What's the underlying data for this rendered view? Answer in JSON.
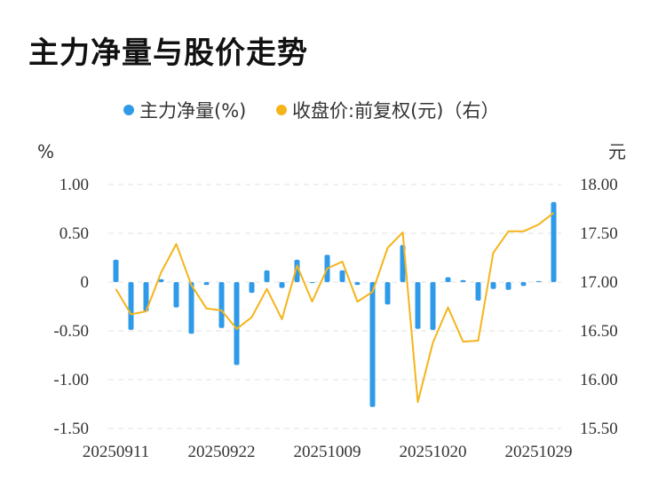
{
  "title": "主力净量与股价走势",
  "chart_data": {
    "type": "bar+line",
    "legend": [
      {
        "label": "主力净量(%)",
        "color": "#2f9be8"
      },
      {
        "label": "收盘价:前复权(元)（右）",
        "color": "#f5b41a"
      }
    ],
    "left_unit": "%",
    "right_unit": "元",
    "left_ticks": [
      "1.00",
      "0.50",
      "0",
      "-0.50",
      "-1.00",
      "-1.50"
    ],
    "right_ticks": [
      "18.00",
      "17.50",
      "17.00",
      "16.50",
      "16.00",
      "15.50"
    ],
    "left_range": [
      -1.5,
      1.0
    ],
    "right_range": [
      15.5,
      18.0
    ],
    "x_labels": [
      "20250911",
      "20250922",
      "20251009",
      "20251020",
      "20251029"
    ],
    "grid": true,
    "series": [
      {
        "name": "主力净量(%)",
        "type": "bar",
        "values": [
          0.23,
          -0.49,
          -0.3,
          0.03,
          -0.26,
          -0.53,
          -0.03,
          -0.47,
          -0.85,
          -0.11,
          0.12,
          -0.06,
          0.23,
          -0.01,
          0.28,
          0.12,
          -0.03,
          -1.28,
          -0.23,
          0.38,
          -0.48,
          -0.49,
          0.05,
          0.02,
          -0.19,
          -0.07,
          -0.08,
          -0.04,
          0.01,
          0.82
        ]
      },
      {
        "name": "收盘价:前复权(元)（右）",
        "type": "line",
        "values": [
          16.93,
          16.67,
          16.7,
          17.1,
          17.39,
          16.97,
          16.73,
          16.71,
          16.52,
          16.64,
          16.93,
          16.62,
          17.17,
          16.8,
          17.14,
          17.21,
          16.8,
          16.9,
          17.35,
          17.51,
          15.77,
          16.38,
          16.74,
          16.39,
          16.4,
          17.3,
          17.52,
          17.52,
          17.59,
          17.71
        ]
      }
    ]
  }
}
